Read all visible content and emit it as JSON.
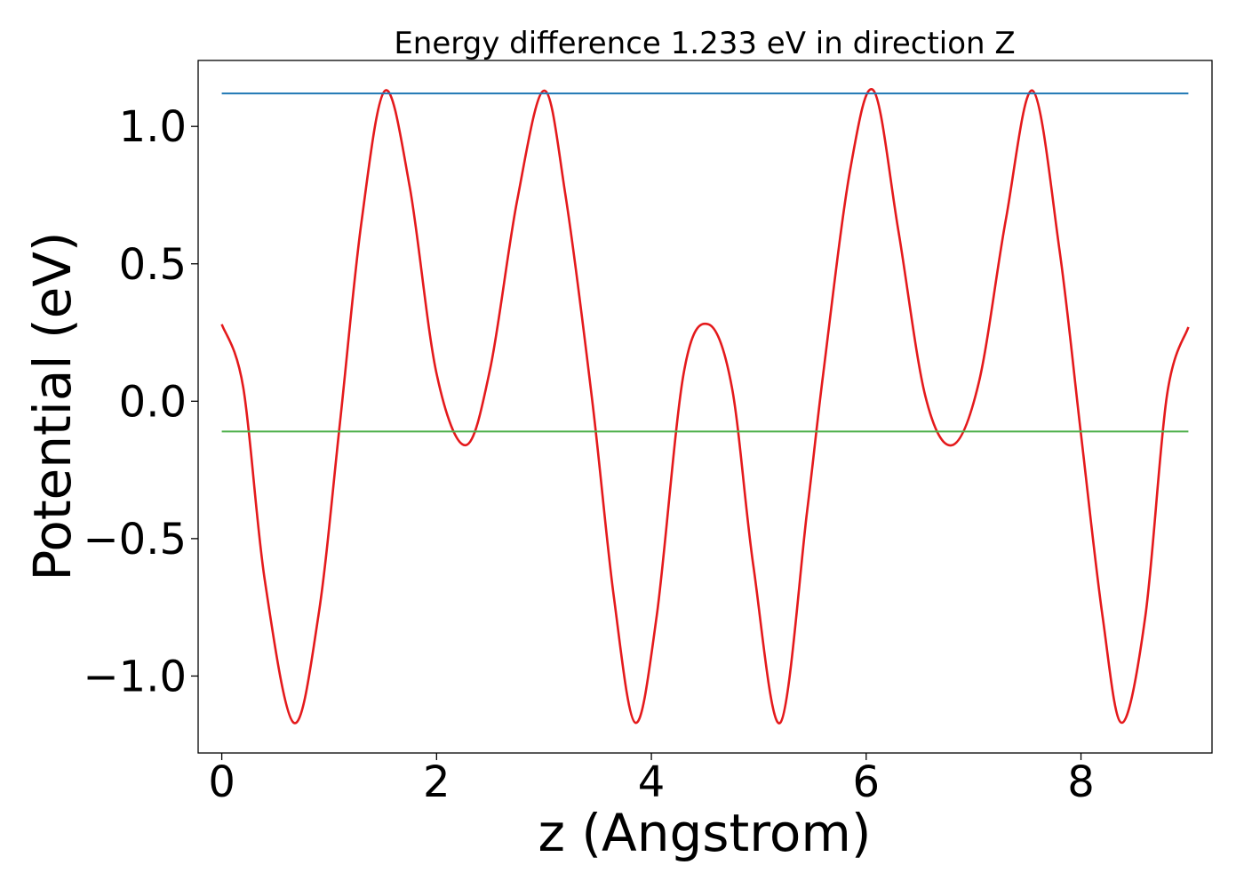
{
  "chart_data": {
    "type": "line",
    "title": "Energy difference 1.233 eV in direction Z",
    "xlabel": "z (Angstrom)",
    "ylabel": "Potential (eV)",
    "xlim": [
      -0.22,
      9.22
    ],
    "ylim": [
      -1.28,
      1.24
    ],
    "xticks": [
      0,
      2,
      4,
      6,
      8
    ],
    "xtick_labels": [
      "0",
      "2",
      "4",
      "6",
      "8"
    ],
    "yticks": [
      1.0,
      0.5,
      0.0,
      -0.5,
      -1.0
    ],
    "ytick_labels": [
      "1.0",
      "0.5",
      "0.0",
      "−0.5",
      "−1.0"
    ],
    "grid": false,
    "series": [
      {
        "color": "#e41a1c",
        "x": [
          0,
          0.2,
          0.4,
          0.67,
          0.9,
          1.1,
          1.3,
          1.52,
          1.75,
          2.0,
          2.27,
          2.5,
          2.75,
          3.0,
          3.2,
          3.45,
          3.65,
          3.85,
          4.05,
          4.3,
          4.53,
          4.75,
          4.95,
          5.2,
          5.45,
          5.6,
          5.85,
          6.07,
          6.3,
          6.55,
          6.8,
          7.05,
          7.3,
          7.55,
          7.8,
          8.0,
          8.2,
          8.38,
          8.6,
          8.8,
          9.0
        ],
        "y": [
          0.28,
          0.05,
          -0.65,
          -1.17,
          -0.78,
          -0.08,
          0.65,
          1.13,
          0.78,
          0.1,
          -0.16,
          0.12,
          0.73,
          1.13,
          0.75,
          0.0,
          -0.71,
          -1.17,
          -0.78,
          0.1,
          0.28,
          0.05,
          -0.6,
          -1.17,
          -0.4,
          0.1,
          0.84,
          1.13,
          0.62,
          0.02,
          -0.16,
          0.07,
          0.66,
          1.13,
          0.55,
          -0.12,
          -0.78,
          -1.17,
          -0.78,
          0.02,
          0.27
        ]
      },
      {
        "color": "#1f77b4",
        "x": [
          0,
          9.0
        ],
        "y": [
          1.12,
          1.12
        ]
      },
      {
        "color": "#4daf4a",
        "x": [
          0,
          9.0
        ],
        "y": [
          -0.11,
          -0.11
        ]
      }
    ]
  }
}
